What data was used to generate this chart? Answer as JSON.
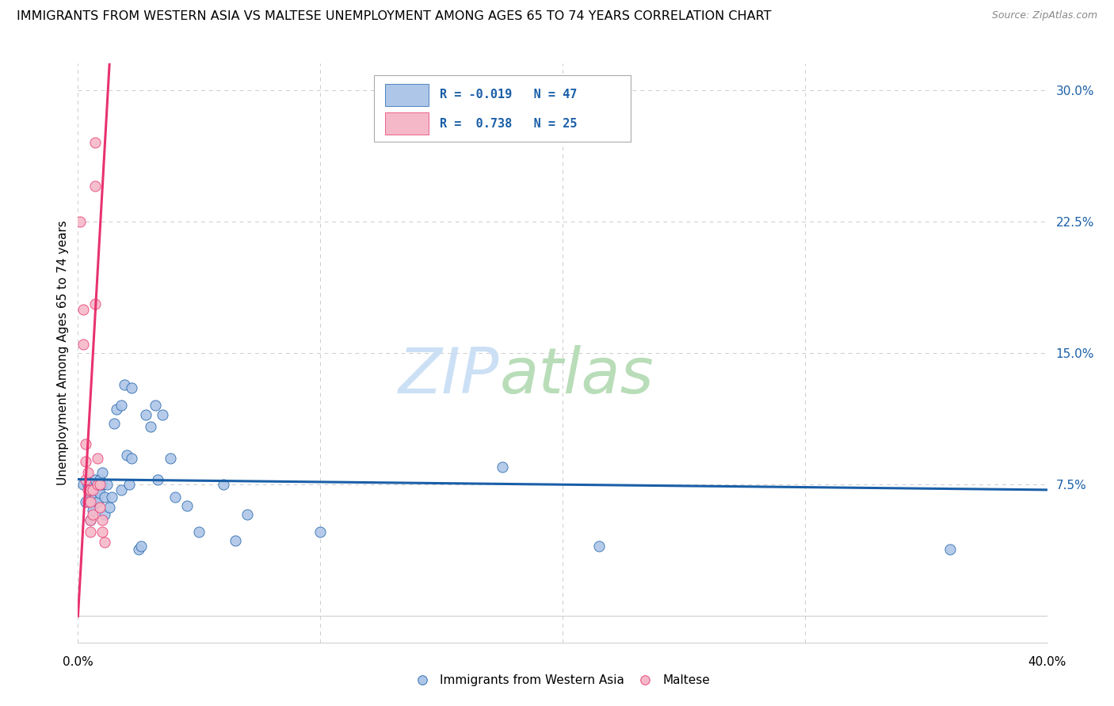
{
  "title": "IMMIGRANTS FROM WESTERN ASIA VS MALTESE UNEMPLOYMENT AMONG AGES 65 TO 74 YEARS CORRELATION CHART",
  "source": "Source: ZipAtlas.com",
  "ylabel": "Unemployment Among Ages 65 to 74 years",
  "yticks": [
    0.0,
    0.075,
    0.15,
    0.225,
    0.3
  ],
  "ytick_labels": [
    "",
    "7.5%",
    "15.0%",
    "22.5%",
    "30.0%"
  ],
  "xmin": 0.0,
  "xmax": 0.4,
  "ymin": -0.015,
  "ymax": 0.315,
  "blue_scatter": [
    [
      0.002,
      0.075
    ],
    [
      0.003,
      0.065
    ],
    [
      0.004,
      0.075
    ],
    [
      0.005,
      0.068
    ],
    [
      0.005,
      0.055
    ],
    [
      0.006,
      0.072
    ],
    [
      0.006,
      0.06
    ],
    [
      0.007,
      0.078
    ],
    [
      0.007,
      0.068
    ],
    [
      0.008,
      0.072
    ],
    [
      0.008,
      0.065
    ],
    [
      0.009,
      0.078
    ],
    [
      0.009,
      0.07
    ],
    [
      0.01,
      0.082
    ],
    [
      0.01,
      0.075
    ],
    [
      0.011,
      0.068
    ],
    [
      0.011,
      0.058
    ],
    [
      0.012,
      0.075
    ],
    [
      0.013,
      0.062
    ],
    [
      0.014,
      0.068
    ],
    [
      0.015,
      0.11
    ],
    [
      0.016,
      0.118
    ],
    [
      0.018,
      0.12
    ],
    [
      0.018,
      0.072
    ],
    [
      0.019,
      0.132
    ],
    [
      0.02,
      0.092
    ],
    [
      0.021,
      0.075
    ],
    [
      0.022,
      0.13
    ],
    [
      0.022,
      0.09
    ],
    [
      0.025,
      0.038
    ],
    [
      0.026,
      0.04
    ],
    [
      0.028,
      0.115
    ],
    [
      0.03,
      0.108
    ],
    [
      0.032,
      0.12
    ],
    [
      0.033,
      0.078
    ],
    [
      0.035,
      0.115
    ],
    [
      0.038,
      0.09
    ],
    [
      0.04,
      0.068
    ],
    [
      0.045,
      0.063
    ],
    [
      0.05,
      0.048
    ],
    [
      0.06,
      0.075
    ],
    [
      0.065,
      0.043
    ],
    [
      0.07,
      0.058
    ],
    [
      0.1,
      0.048
    ],
    [
      0.175,
      0.085
    ],
    [
      0.215,
      0.04
    ],
    [
      0.36,
      0.038
    ]
  ],
  "pink_scatter": [
    [
      0.001,
      0.225
    ],
    [
      0.002,
      0.175
    ],
    [
      0.002,
      0.155
    ],
    [
      0.003,
      0.098
    ],
    [
      0.003,
      0.088
    ],
    [
      0.003,
      0.078
    ],
    [
      0.004,
      0.082
    ],
    [
      0.004,
      0.072
    ],
    [
      0.004,
      0.065
    ],
    [
      0.005,
      0.072
    ],
    [
      0.005,
      0.065
    ],
    [
      0.005,
      0.055
    ],
    [
      0.005,
      0.048
    ],
    [
      0.006,
      0.072
    ],
    [
      0.006,
      0.058
    ],
    [
      0.007,
      0.27
    ],
    [
      0.007,
      0.245
    ],
    [
      0.007,
      0.178
    ],
    [
      0.008,
      0.09
    ],
    [
      0.008,
      0.075
    ],
    [
      0.009,
      0.075
    ],
    [
      0.009,
      0.062
    ],
    [
      0.01,
      0.055
    ],
    [
      0.01,
      0.048
    ],
    [
      0.011,
      0.042
    ]
  ],
  "blue_line_x": [
    0.0,
    0.4
  ],
  "blue_line_y": [
    0.078,
    0.072
  ],
  "pink_line_x": [
    0.0,
    0.013
  ],
  "pink_line_y": [
    0.0,
    0.315
  ],
  "blue_color": "#aec6e8",
  "pink_color": "#f5b8c8",
  "blue_line_color": "#1a5fa8",
  "pink_line_color": "#e8326e",
  "grid_color": "#cccccc",
  "title_fontsize": 11.5,
  "axis_label_fontsize": 11,
  "tick_fontsize": 11
}
